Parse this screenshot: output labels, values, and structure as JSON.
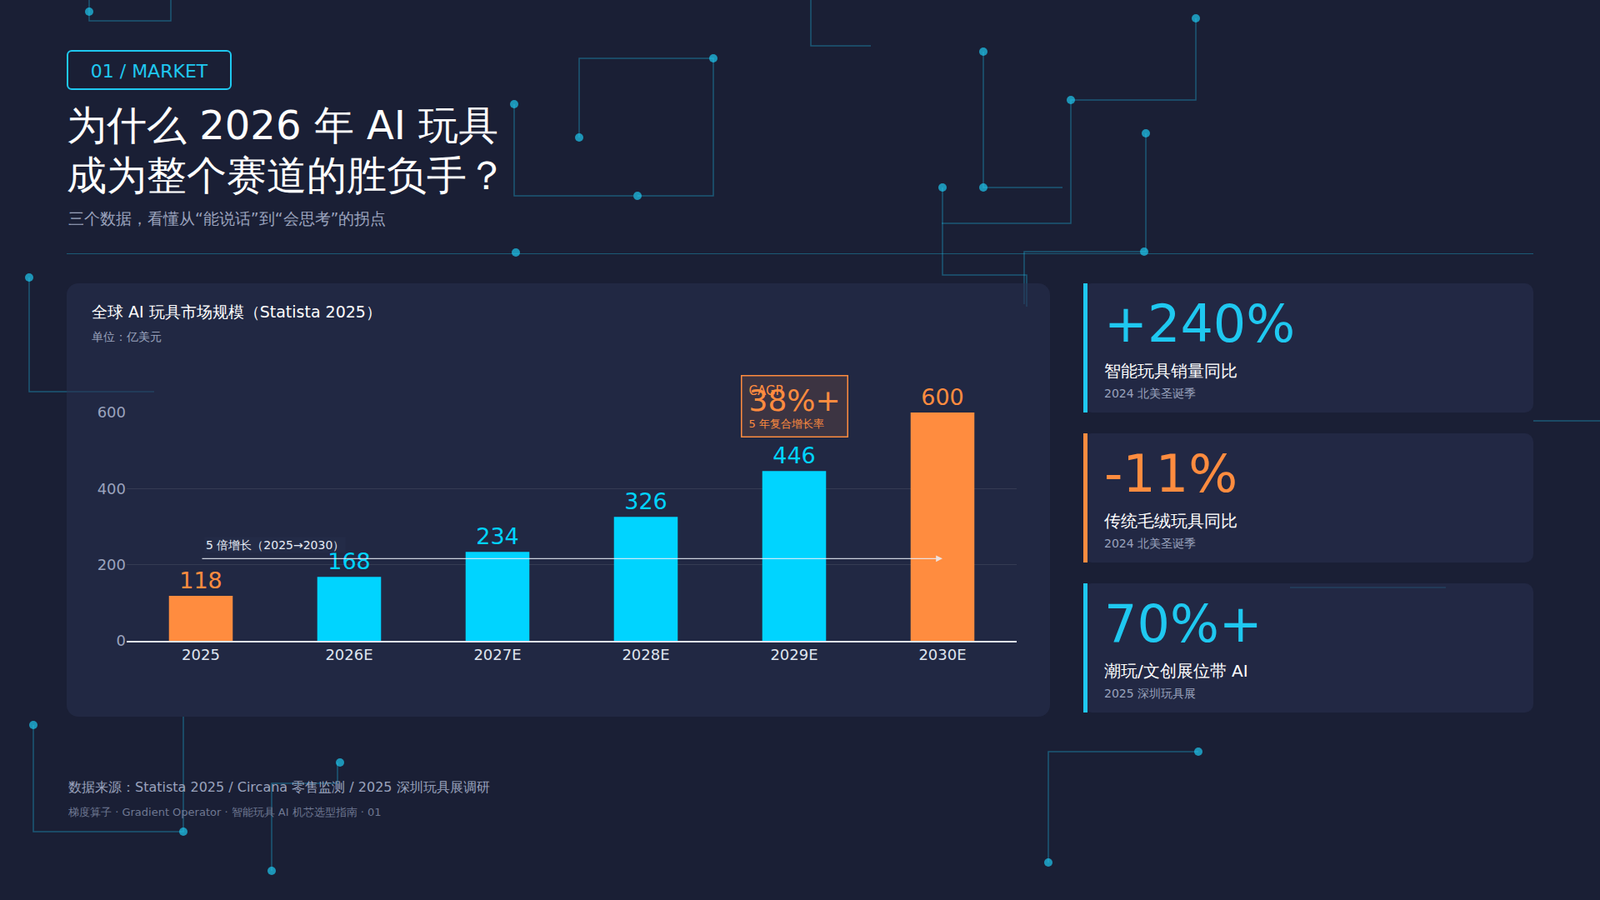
{
  "header": {
    "tag": "01 / MARKET",
    "title_lines": [
      "为什么 2026 年 AI 玩具",
      "成为整个赛道的胜负手？"
    ],
    "subtitle": "三个数据，看懂从“能说话”到“会思考”的拐点"
  },
  "chart_data": {
    "type": "bar",
    "title": "全球 AI 玩具市场规模（Statista 2025）",
    "subtitle": "单位：亿美元",
    "categories": [
      "2025",
      "2026E",
      "2027E",
      "2028E",
      "2029E",
      "2030E"
    ],
    "values": [
      118,
      168,
      234,
      326,
      446,
      600
    ],
    "colors": [
      "#ff8c3f",
      "#00d4ff",
      "#00d4ff",
      "#00d4ff",
      "#00d4ff",
      "#ff8c3f"
    ],
    "ylim": [
      0,
      600
    ],
    "yticks": [
      0,
      200,
      400,
      600
    ],
    "grid": true,
    "data_labels": true,
    "growth_arrow": {
      "text": "5 倍增长（2025→2030）",
      "from": "2025",
      "to": "2030E"
    },
    "cagr_box": {
      "label": "CAGR",
      "value_text": "38%+",
      "note": "5 年复合增长率",
      "color": "#ff8c3f"
    }
  },
  "stats": [
    {
      "value_text": "+240%",
      "label": "智能玩具销量同比",
      "source": "2024 北美圣诞季",
      "color": "#1fc8f0"
    },
    {
      "value_text": "-11%",
      "label": "传统毛绒玩具同比",
      "source": "2024 北美圣诞季",
      "color": "#ff8c3f"
    },
    {
      "value_text": "70%+",
      "label": "潮玩/文创展位带 AI",
      "source": "2025 深圳玩具展",
      "color": "#1fc8f0"
    }
  ],
  "footer": {
    "source": "数据来源：Statista 2025 / Circana 零售监测 / 2025 深圳玩具展调研",
    "credits": "梯度算子 · Gradient Operator · 智能玩具 AI 机芯选型指南 · 01"
  }
}
